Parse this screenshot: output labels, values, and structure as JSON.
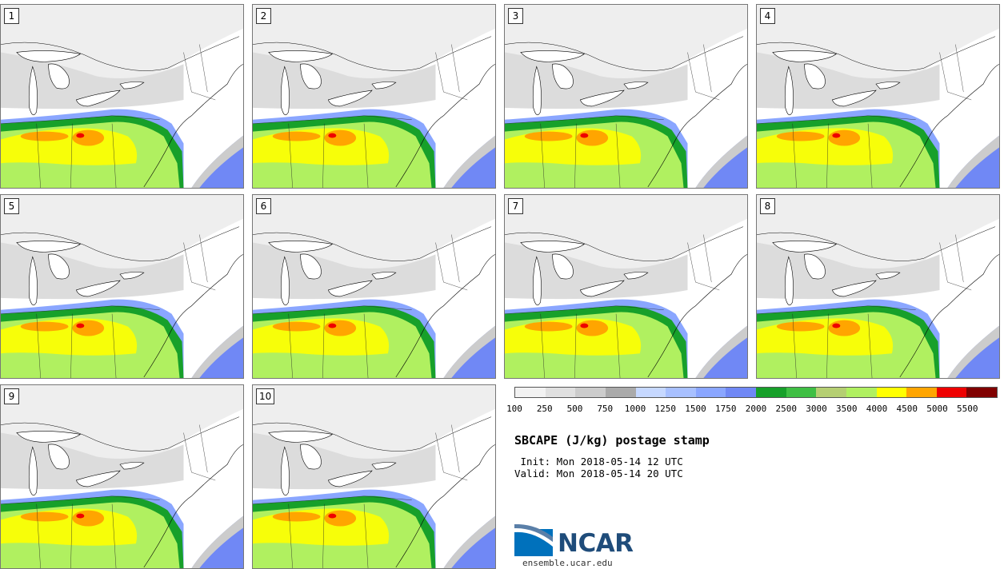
{
  "panels": [
    {
      "label": "1"
    },
    {
      "label": "2"
    },
    {
      "label": "3"
    },
    {
      "label": "4"
    },
    {
      "label": "5"
    },
    {
      "label": "6"
    },
    {
      "label": "7"
    },
    {
      "label": "8"
    },
    {
      "label": "9"
    },
    {
      "label": "10"
    }
  ],
  "legend": {
    "colors": [
      "#f2f2f2",
      "#e0e0e0",
      "#cccccc",
      "#aaaaaa",
      "#c6d8ff",
      "#a8c0ff",
      "#8aa6ff",
      "#7088f5",
      "#17a02a",
      "#3fbf44",
      "#b5cf72",
      "#b0f060",
      "#ffff00",
      "#ffa500",
      "#ee0000",
      "#800000"
    ],
    "tick_labels": [
      "100",
      "250",
      "500",
      "750",
      "1000",
      "1250",
      "1500",
      "1750",
      "2000",
      "2500",
      "3000",
      "3500",
      "4000",
      "4500",
      "5000",
      "5500"
    ]
  },
  "title": "SBCAPE (J/kg) postage stamp",
  "init": " Init: Mon 2018-05-14 12 UTC",
  "valid": "Valid: Mon 2018-05-14 20 UTC",
  "logo_text": "NCAR",
  "site": "ensemble.ucar.edu"
}
